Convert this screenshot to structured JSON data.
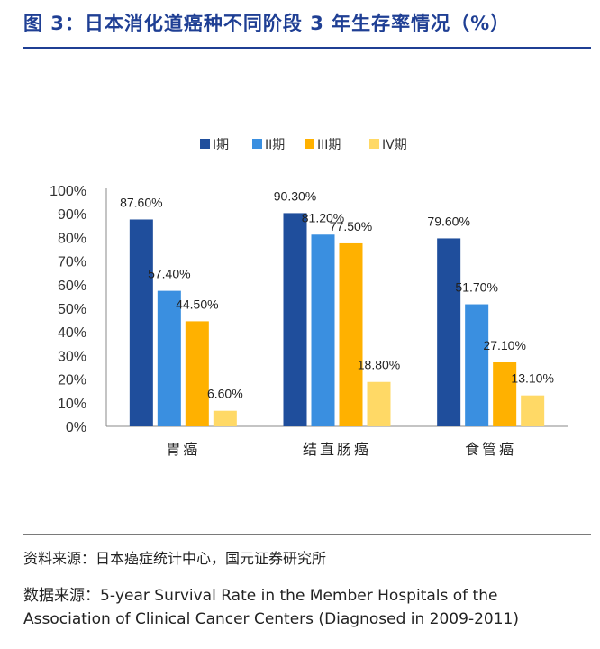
{
  "title": "图 3：日本消化道癌种不同阶段 3 年生存率情况（%）",
  "chart_data": {
    "type": "bar",
    "categories": [
      "胃癌",
      "结直肠癌",
      "食管癌"
    ],
    "series": [
      {
        "name": "I期",
        "values": [
          87.6,
          90.3,
          79.6
        ],
        "labels": [
          "87.60%",
          "90.30%",
          "79.60%"
        ],
        "color": "#1f4e9c"
      },
      {
        "name": "II期",
        "values": [
          57.4,
          81.2,
          51.7
        ],
        "labels": [
          "57.40%",
          "81.20%",
          "51.70%"
        ],
        "color": "#3a8fe0"
      },
      {
        "name": "III期",
        "values": [
          44.5,
          77.5,
          27.1
        ],
        "labels": [
          "44.50%",
          "77.50%",
          "27.10%"
        ],
        "color": "#ffb100"
      },
      {
        "name": "IV期",
        "values": [
          6.6,
          18.8,
          13.1
        ],
        "labels": [
          "6.60%",
          "18.80%",
          "13.10%"
        ],
        "color": "#ffd966"
      }
    ],
    "y_ticks": [
      "0%",
      "10%",
      "20%",
      "30%",
      "40%",
      "50%",
      "60%",
      "70%",
      "80%",
      "90%",
      "100%"
    ],
    "ylim": [
      0,
      100
    ],
    "grid": false,
    "legend_position": "top-center"
  },
  "source": {
    "line1_label": "资料来源：",
    "line1_text": "日本癌症统计中心，国元证券研究所",
    "line2_label": "数据来源：",
    "line2_text": "5-year Survival Rate in the Member Hospitals of the Association of Clinical Cancer Centers (Diagnosed in 2009-2011)"
  }
}
